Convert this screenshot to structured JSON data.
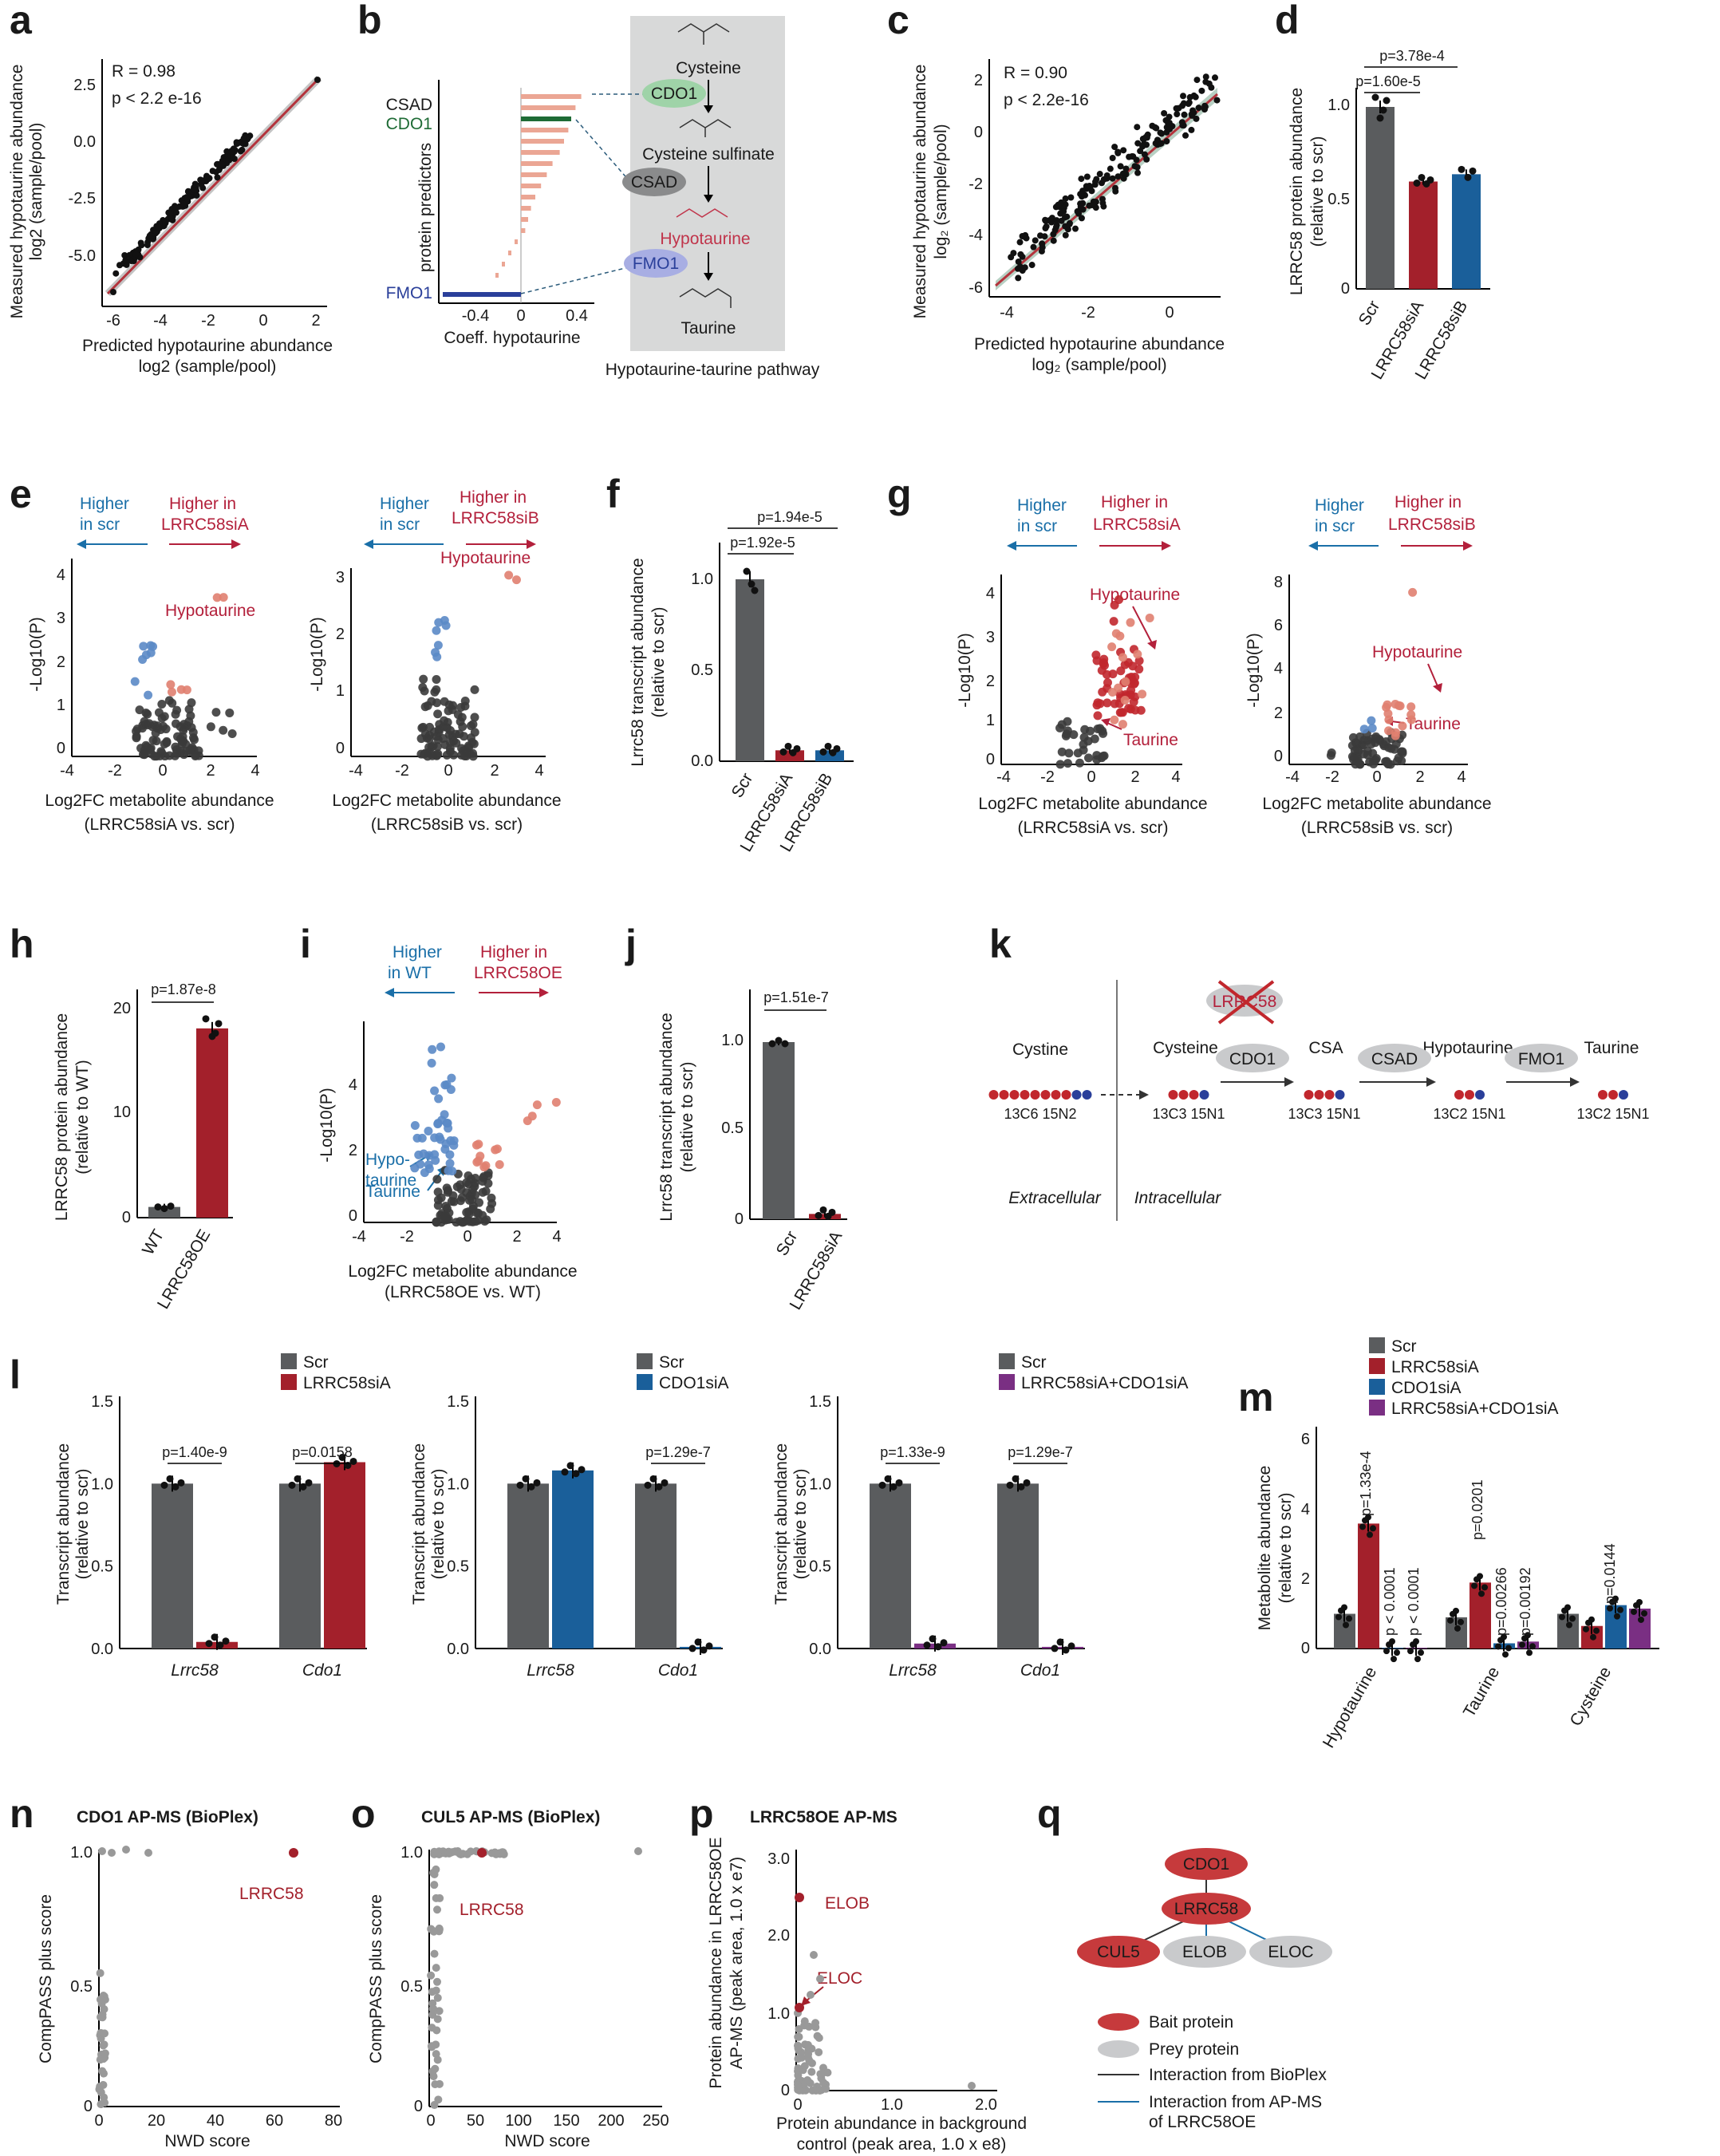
{
  "colors": {
    "scr": "#5a5c5e",
    "siA": "#a3202b",
    "siB": "#1a5f9a",
    "combo": "#7a2f83",
    "up": "#e07f70",
    "down": "#5b8ac6",
    "pathway_bg": "#d8d9d9",
    "fit": "#b3333c",
    "prey": "#c9cacc",
    "bait": "#c63a3c"
  },
  "panels": {
    "a": "a",
    "b": "b",
    "c": "c",
    "d": "d",
    "e": "e",
    "f": "f",
    "g": "g",
    "h": "h",
    "i": "i",
    "j": "j",
    "k": "k",
    "l": "l",
    "m": "m",
    "n": "n",
    "o": "o",
    "p": "p",
    "q": "q"
  },
  "a": {
    "r": "R = 0.98",
    "p": "p < 2.2 e-16",
    "ylabel1": "Measured hypotaurine abundance",
    "ylabel2": "log2 (sample/pool)",
    "xlabel1": "Predicted hypotaurine abundance",
    "xlabel2": "log2 (sample/pool)",
    "xticks": [
      "-6",
      "-4",
      "-2",
      "0",
      "2"
    ],
    "yticks": [
      "2.5",
      "0.0",
      "-2.5",
      "-5.0"
    ]
  },
  "b": {
    "labels": [
      "CSAD",
      "CDO1",
      "FMO1"
    ],
    "ylabel": "protein predictors",
    "xlabel": "Coeff. hypotaurine",
    "xticks": [
      "-0.4",
      "0",
      "0.4"
    ],
    "pathway_title": "Hypotaurine-taurine pathway",
    "metabolites": [
      "Cysteine",
      "Cysteine sulfinate",
      "Hypotaurine",
      "Taurine"
    ],
    "enzymes": [
      "CDO1",
      "CSAD",
      "FMO1"
    ]
  },
  "c": {
    "r": "R = 0.90",
    "p": "p < 2.2e-16",
    "ylabel1": "Measured hypotaurine abundance",
    "ylabel2": "log₂ (sample/pool)",
    "xlabel1": "Predicted hypotaurine abundance",
    "xlabel2": "log₂ (sample/pool)",
    "xticks": [
      "-4",
      "-2",
      "0"
    ],
    "yticks": [
      "2",
      "0",
      "-2",
      "-4",
      "-6"
    ]
  },
  "d": {
    "ylabel1": "LRRC58 protein abundance",
    "ylabel2": "(relative to scr)",
    "pvals": [
      "p=1.60e-5",
      "p=3.78e-4"
    ],
    "yticks": [
      "1.0",
      "0.5",
      "0"
    ],
    "cats": [
      "Scr",
      "LRRC58siA",
      "LRRC58siB"
    ]
  },
  "e": {
    "left_lbl": [
      "Higher",
      "in scr"
    ],
    "right_lbl": [
      "Higher in",
      "LRRC58siA"
    ],
    "right_lbl_b": [
      "Higher in",
      "LRRC58siB"
    ],
    "hit": "Hypotaurine",
    "ylabel": "-Log10(P)",
    "xlabel": "Log2FC metabolite abundance",
    "sub_a": "(LRRC58siA vs. scr)",
    "sub_b": "(LRRC58siB vs. scr)",
    "xticks": [
      "-4",
      "-2",
      "0",
      "2",
      "4"
    ],
    "yticks_a": [
      "0",
      "1",
      "2",
      "3",
      "4"
    ],
    "yticks_b": [
      "0",
      "1",
      "2",
      "3"
    ]
  },
  "f": {
    "ylabel1": "Lrrc58 transcript abundance",
    "ylabel2": "(relative to scr)",
    "pvals": [
      "p=1.92e-5",
      "p=1.94e-5"
    ],
    "yticks": [
      "1.0",
      "0.5",
      "0.0"
    ],
    "cats": [
      "Scr",
      "LRRC58siA",
      "LRRC58siB"
    ]
  },
  "g": {
    "hit1": "Hypotaurine",
    "hit2": "Taurine",
    "yticks_a": [
      "0",
      "1",
      "2",
      "3",
      "4"
    ],
    "yticks_b": [
      "0",
      "2",
      "4",
      "6",
      "8"
    ],
    "xticks": [
      "-4",
      "-2",
      "0",
      "2",
      "4"
    ]
  },
  "h": {
    "ylabel1": "LRRC58 protein abundance",
    "ylabel2": "(relative to WT)",
    "pval": "p=1.87e-8",
    "yticks": [
      "20",
      "10",
      "0"
    ],
    "cats": [
      "WT",
      "LRRC58OE"
    ]
  },
  "i": {
    "left_lbl": [
      "Higher",
      "in WT"
    ],
    "right_lbl": [
      "Higher in",
      "LRRC58OE"
    ],
    "hit1": [
      "Hypo-",
      "taurine"
    ],
    "hit2": "Taurine",
    "sub": "(LRRC58OE vs. WT)",
    "xticks": [
      "-4",
      "-2",
      "0",
      "2",
      "4"
    ],
    "yticks": [
      "0",
      "2",
      "4"
    ]
  },
  "j": {
    "ylabel1": "Lrrc58 transcript abundance",
    "ylabel2": "(relative to scr)",
    "pval": "p=1.51e-7",
    "yticks": [
      "1.0",
      "0.5",
      "0"
    ],
    "cats": [
      "Scr",
      "LRRC58siA"
    ]
  },
  "k": {
    "lrrc58": "LRRC58",
    "steps": [
      "Cystine",
      "Cysteine",
      "CSA",
      "Hypotaurine",
      "Taurine"
    ],
    "enzymes": [
      "CDO1",
      "CSAD",
      "FMO1"
    ],
    "isotopes": [
      "13C6 15N2",
      "13C3 15N1",
      "13C3 15N1",
      "13C2 15N1",
      "13C2 15N1"
    ],
    "extra": "Extracellular",
    "intra": "Intracellular"
  },
  "l": {
    "ylabel1": "Transcript abundance",
    "ylabel2": "(relative to scr)",
    "legend1": [
      "Scr",
      "LRRC58siA"
    ],
    "legend2": [
      "Scr",
      "CDO1siA"
    ],
    "legend3": [
      "Scr",
      "LRRC58siA+CDO1siA"
    ],
    "p1": [
      "p=1.40e-9",
      "p=0.0158"
    ],
    "p2": [
      "p=1.29e-7"
    ],
    "p3": [
      "p=1.33e-9",
      "p=1.29e-7"
    ],
    "cats": [
      "Lrrc58",
      "Cdo1"
    ],
    "yticks": [
      "0.0",
      "0.5",
      "1.0",
      "1.5"
    ]
  },
  "m": {
    "ylabel1": "Metabolite abundance",
    "ylabel2": "(relative to scr)",
    "legend": [
      "Scr",
      "LRRC58siA",
      "CDO1siA",
      "LRRC58siA+CDO1siA"
    ],
    "cats": [
      "Hypotaurine",
      "Taurine",
      "Cysteine"
    ],
    "pvals": [
      "p=1.33e-4",
      "p < 0.0001",
      "p < 0.0001",
      "p=0.0201",
      "p=0.00266",
      "p=0.00192",
      "p=0.0144"
    ],
    "yticks": [
      "0",
      "2",
      "4",
      "6"
    ]
  },
  "n": {
    "title": "CDO1 AP-MS (BioPlex)",
    "hit": "LRRC58",
    "ylabel": "CompPASS plus score",
    "xlabel": "NWD score",
    "xticks": [
      "0",
      "20",
      "40",
      "60",
      "80"
    ],
    "yticks": [
      "0",
      "0.5",
      "1.0"
    ]
  },
  "o": {
    "title": "CUL5 AP-MS (BioPlex)",
    "hit": "LRRC58",
    "ylabel": "CompPASS plus score",
    "xlabel": "NWD score",
    "xticks": [
      "0",
      "50",
      "100",
      "150",
      "200",
      "250"
    ],
    "yticks": [
      "0",
      "0.5",
      "1.0"
    ]
  },
  "p": {
    "title": "LRRC58OE AP-MS",
    "hit1": "ELOB",
    "hit2": "ELOC",
    "ylabel1": "Protein abundance in LRRC58OE",
    "ylabel2": "AP-MS (peak area, 1.0 x e7)",
    "xlabel1": "Protein abundance in background",
    "xlabel2": "control (peak area, 1.0 x e8)",
    "xticks": [
      "0",
      "1.0",
      "2.0"
    ],
    "yticks": [
      "0",
      "1.0",
      "2.0",
      "3.0"
    ]
  },
  "q": {
    "nodes": [
      "CDO1",
      "LRRC58",
      "CUL5",
      "ELOB",
      "ELOC"
    ],
    "legend": [
      "Bait protein",
      "Prey protein",
      "Interaction from BioPlex",
      "Interaction from AP-MS",
      "of LRRC58OE"
    ]
  }
}
